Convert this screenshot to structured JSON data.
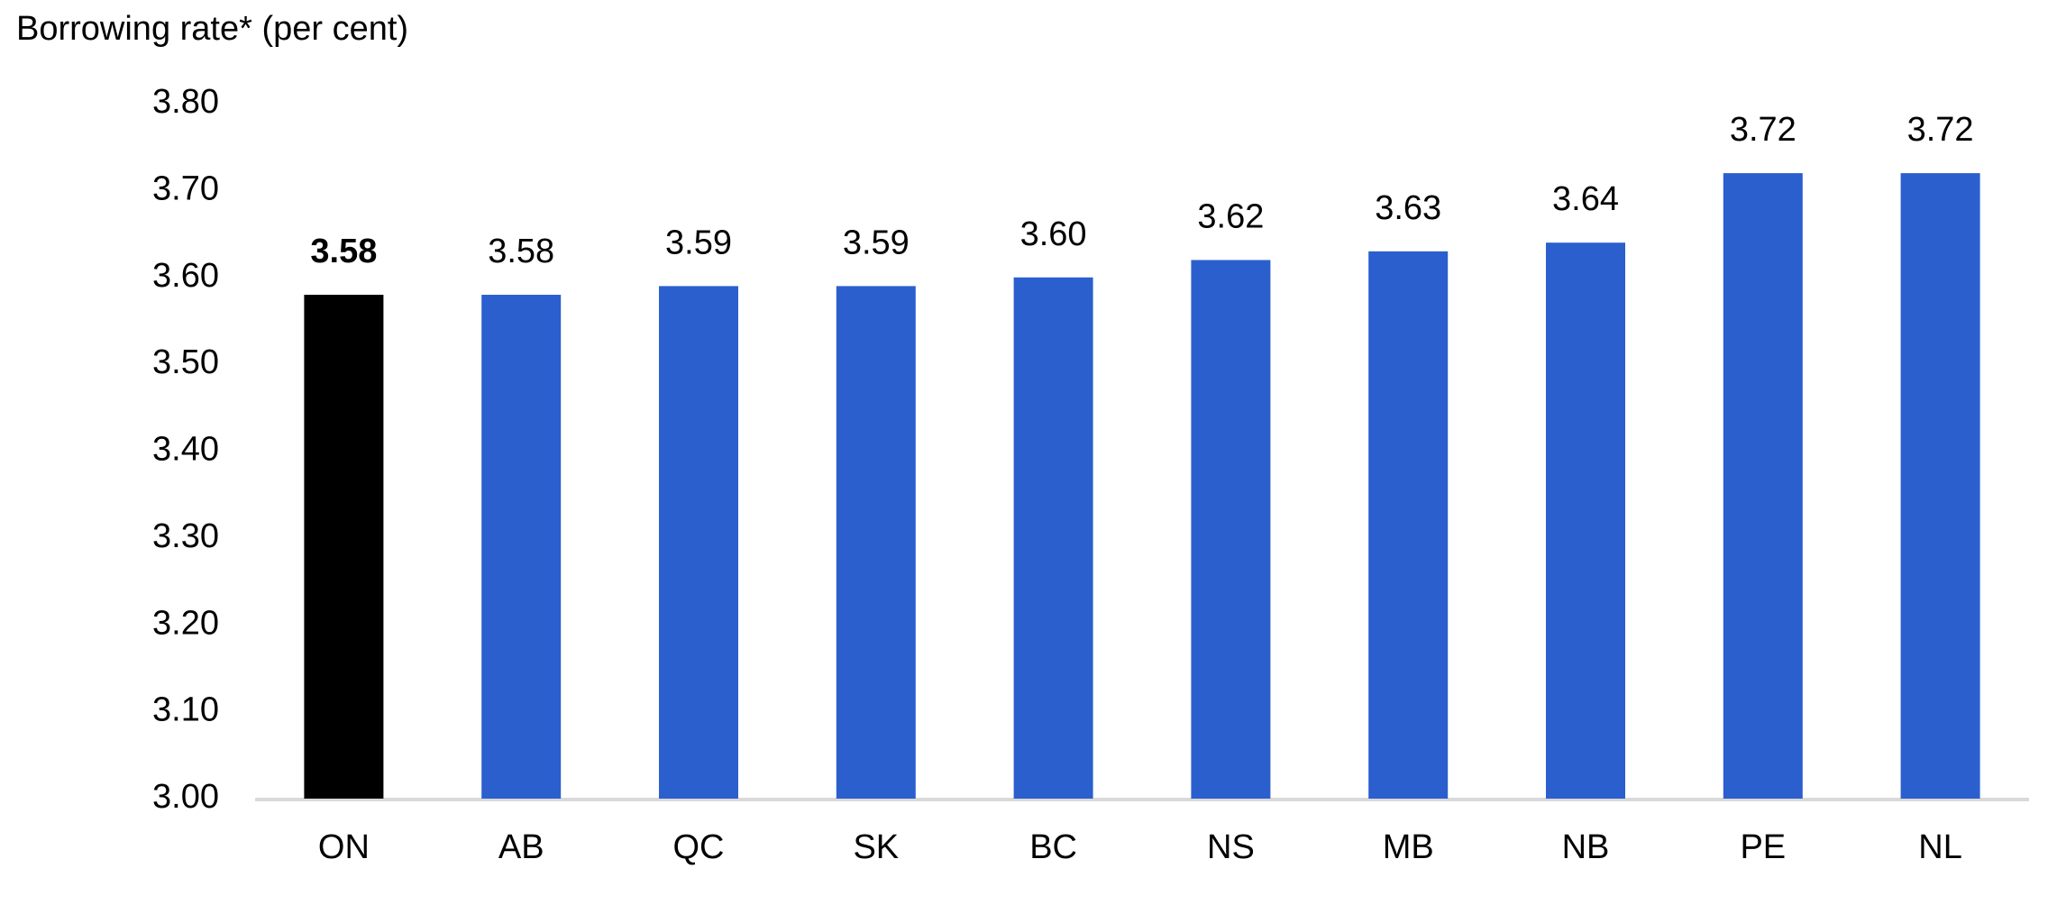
{
  "chart_data": {
    "type": "bar",
    "y_axis_label": "Borrowing rate* (per cent)",
    "categories": [
      "ON",
      "AB",
      "QC",
      "SK",
      "BC",
      "NS",
      "MB",
      "NB",
      "PE",
      "NL"
    ],
    "values": [
      3.58,
      3.58,
      3.59,
      3.59,
      3.6,
      3.62,
      3.63,
      3.64,
      3.72,
      3.72
    ],
    "value_labels": [
      "3.58",
      "3.58",
      "3.59",
      "3.59",
      "3.60",
      "3.62",
      "3.63",
      "3.64",
      "3.72",
      "3.72"
    ],
    "colors": [
      "#000000",
      "#2b5fce",
      "#2b5fce",
      "#2b5fce",
      "#2b5fce",
      "#2b5fce",
      "#2b5fce",
      "#2b5fce",
      "#2b5fce",
      "#2b5fce"
    ],
    "label_bold": [
      true,
      false,
      false,
      false,
      false,
      false,
      false,
      false,
      false,
      false
    ],
    "ylim": [
      3.0,
      3.8
    ],
    "yticks": [
      {
        "value": 3.0,
        "label": "3.00"
      },
      {
        "value": 3.1,
        "label": "3.10"
      },
      {
        "value": 3.2,
        "label": "3.20"
      },
      {
        "value": 3.3,
        "label": "3.30"
      },
      {
        "value": 3.4,
        "label": "3.40"
      },
      {
        "value": 3.5,
        "label": "3.50"
      },
      {
        "value": 3.6,
        "label": "3.60"
      },
      {
        "value": 3.7,
        "label": "3.70"
      },
      {
        "value": 3.8,
        "label": "3.80"
      }
    ],
    "grid": false
  }
}
